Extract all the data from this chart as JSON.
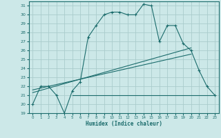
{
  "xlabel": "Humidex (Indice chaleur)",
  "bg_color": "#cce8e8",
  "grid_color": "#aacccc",
  "line_color": "#1a6b6b",
  "xlim": [
    -0.5,
    23.5
  ],
  "ylim": [
    19,
    31.5
  ],
  "yticks": [
    19,
    20,
    21,
    22,
    23,
    24,
    25,
    26,
    27,
    28,
    29,
    30,
    31
  ],
  "xticks": [
    0,
    1,
    2,
    3,
    4,
    5,
    6,
    7,
    8,
    9,
    10,
    11,
    12,
    13,
    14,
    15,
    16,
    17,
    18,
    19,
    20,
    21,
    22,
    23
  ],
  "series1_x": [
    0,
    1,
    2,
    3,
    4,
    5,
    6,
    7,
    8,
    9,
    10,
    11,
    12,
    13,
    14,
    15,
    16,
    17,
    18,
    19,
    20,
    21,
    22,
    23
  ],
  "series1_y": [
    20.0,
    22.0,
    22.0,
    21.0,
    19.0,
    21.5,
    22.5,
    27.5,
    28.8,
    30.0,
    30.3,
    30.3,
    30.0,
    30.0,
    31.2,
    31.0,
    27.0,
    28.8,
    28.8,
    26.8,
    26.0,
    23.8,
    22.0,
    21.0
  ],
  "series2_x": [
    0,
    20
  ],
  "series2_y": [
    21.3,
    26.3
  ],
  "series3_x": [
    0,
    20
  ],
  "series3_y": [
    21.6,
    25.6
  ],
  "hline_x": [
    5,
    23
  ],
  "hline_y": [
    21.0,
    21.0
  ]
}
